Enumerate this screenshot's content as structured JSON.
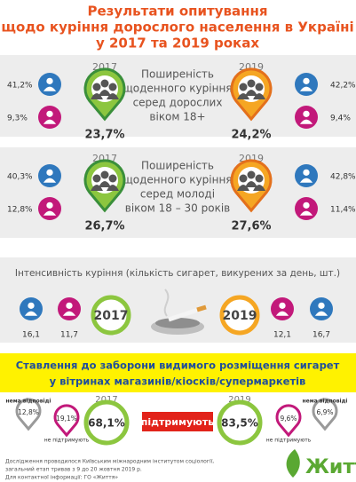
{
  "header": {
    "title_lines": [
      "Результати опитування",
      "щодо куріння дорослого населення в Україні",
      "у 2017 та 2019 роках"
    ]
  },
  "sections": [
    {
      "description_lines": [
        "Поширеність",
        "щоденного куріння",
        "серед дорослих",
        "віком 18+"
      ],
      "left": {
        "year": "2017",
        "total": "23,7%",
        "male": "41,2%",
        "female": "9,3%"
      },
      "right": {
        "year": "2019",
        "total": "24,2%",
        "male": "42,2%",
        "female": "9,4%"
      }
    },
    {
      "description_lines": [
        "Поширеність",
        "щоденного куріння",
        "серед молоді",
        "віком 18 – 30 років"
      ],
      "left": {
        "year": "2017",
        "total": "26,7%",
        "male": "40,3%",
        "female": "12,8%"
      },
      "right": {
        "year": "2019",
        "total": "27,6%",
        "male": "42,8%",
        "female": "11,4%"
      }
    }
  ],
  "intensity": {
    "title": "Інтенсивність куріння (кількість сигарет, викурених за день, шт.)",
    "left": {
      "year": "2017",
      "male": "16,1",
      "female": "11,7"
    },
    "right": {
      "year": "2019",
      "male": "16,7",
      "female": "12,1"
    }
  },
  "attitude": {
    "title_lines": [
      "Ставлення до заборони видимого розміщення сигарет",
      "у вітринах магазинів/кіосків/супермаркетів"
    ],
    "support_label": "підтримують",
    "left": {
      "year": "2017",
      "support": "68,1%",
      "no_answer": "12,8%",
      "no_answer_label": "нема відповіді",
      "not_support": "19,1%",
      "not_support_label": "не підтримують"
    },
    "right": {
      "year": "2019",
      "support": "83,5%",
      "no_answer": "6,9%",
      "no_answer_label": "нема відповіді",
      "not_support": "9,6%",
      "not_support_label": "не підтримують"
    }
  },
  "footer": {
    "lines": [
      "Дослідження проводилося Київським міжнародним інститутом соціології,",
      "загальний етап тривав з 9 до 20 жовтня 2019 р.",
      "Для контактної інформації: ГО «Життя»"
    ],
    "logo": "Життя"
  }
}
